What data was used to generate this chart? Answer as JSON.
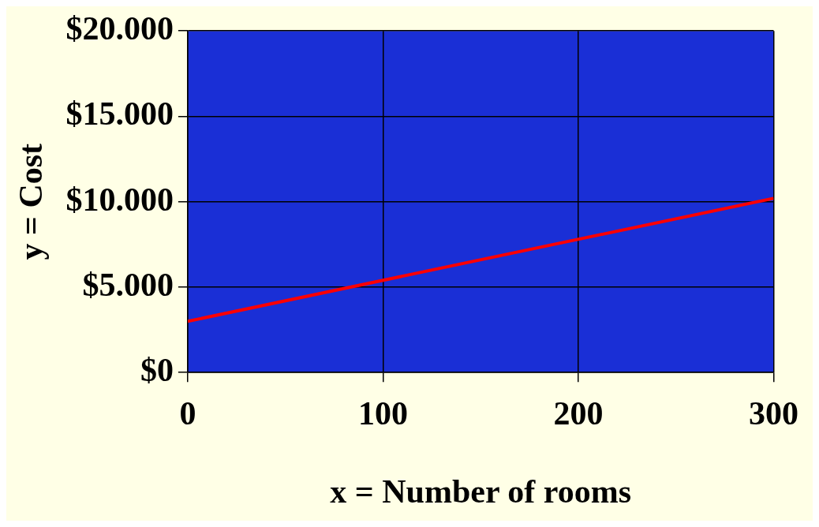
{
  "chart_data": {
    "type": "line",
    "xlabel": "x = Number of rooms",
    "ylabel": "y = Cost",
    "x": [
      0,
      300
    ],
    "series": [
      {
        "color": "#ff0000",
        "values": [
          3000,
          10200
        ]
      }
    ],
    "xlim": [
      0,
      300
    ],
    "xticks": [
      0,
      100,
      200,
      300
    ],
    "ylim": [
      0,
      20000
    ],
    "yticks": [
      {
        "value": 0,
        "label": "$0"
      },
      {
        "value": 5000,
        "label": "$5.000"
      },
      {
        "value": 10000,
        "label": "$10.000"
      },
      {
        "value": 15000,
        "label": "$15.000"
      },
      {
        "value": 20000,
        "label": "$20.000"
      }
    ],
    "grid": true,
    "legend": false
  }
}
